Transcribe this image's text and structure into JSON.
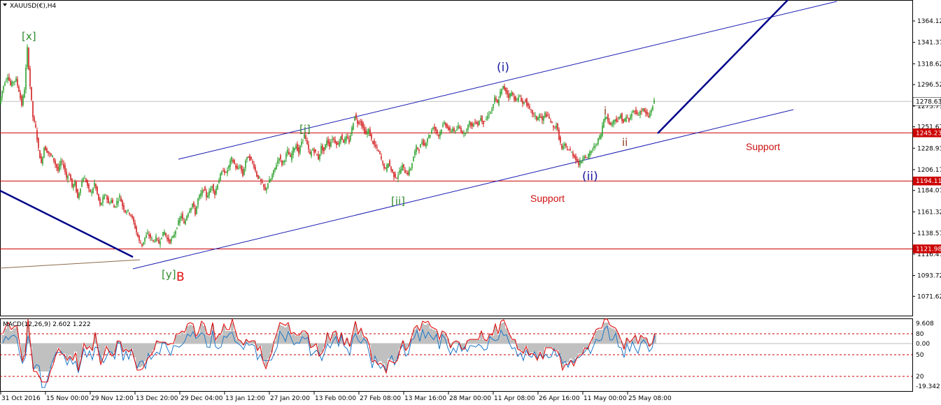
{
  "chart_data": {
    "type": "candlestick",
    "title": "XAUUSD(€),H4",
    "symbol": "XAUUSD(€)",
    "timeframe": "H4",
    "colors": {
      "bull": "#2ea12e",
      "bear": "#d21e1e",
      "channel": "#1a1ab4",
      "channel_thick": "#00008b",
      "support_line": "#cc0000",
      "price_line": "#c0c0c0",
      "macd_hist": "#c0c0c0",
      "macd_signal": "#e00000",
      "macd_main": "#1e78c8",
      "green_label": "#2e8b2e",
      "blue_label": "#1a1aa0",
      "brown_label": "#8b3a1a",
      "support_text": "#cc1111",
      "tag_bg": "#cc0000"
    },
    "price_axis": {
      "ylim": [
        1060,
        1376
      ],
      "ticks": [
        "1364.12",
        "1341.37",
        "1318.62",
        "1296.52",
        "1273.77",
        "1251.67",
        "1228.93",
        "1206.17",
        "1184.07",
        "1161.32",
        "1138.57",
        "1116.47",
        "1093.72",
        "1071.62"
      ]
    },
    "price_tags": [
      {
        "value": 1278.63,
        "label": "1278.63",
        "bg": "#ffffff",
        "fg": "#000000"
      },
      {
        "value": 1245.23,
        "label": "1245.23",
        "bg": "#cc0000",
        "fg": "#ffffff"
      },
      {
        "value": 1194.11,
        "label": "1194.11",
        "bg": "#cc0000",
        "fg": "#ffffff"
      },
      {
        "value": 1121.98,
        "label": "1121.98",
        "bg": "#cc0000",
        "fg": "#ffffff"
      }
    ],
    "horizontal_lines": [
      {
        "value": 1278.63,
        "style": "price"
      },
      {
        "value": 1245.23,
        "style": "support"
      },
      {
        "value": 1194.11,
        "style": "support"
      },
      {
        "value": 1121.98,
        "style": "support"
      }
    ],
    "time_axis": {
      "labels": [
        "31 Oct 2016",
        "15 Nov 00:00",
        "29 Nov 12:00",
        "13 Dec 20:00",
        "29 Dec 04:00",
        "13 Jan 12:00",
        "27 Jan 20:00",
        "13 Feb 00:00",
        "27 Feb 08:00",
        "13 Mar 16:00",
        "28 Mar 00:00",
        "11 Apr 08:00",
        "26 Apr 16:00",
        "11 May 00:00",
        "25 May 08:00"
      ]
    },
    "price_path": [
      [
        0,
        1276
      ],
      [
        4,
        1290
      ],
      [
        8,
        1300
      ],
      [
        12,
        1306
      ],
      [
        16,
        1296
      ],
      [
        20,
        1300
      ],
      [
        24,
        1302
      ],
      [
        28,
        1290
      ],
      [
        32,
        1275
      ],
      [
        36,
        1292
      ],
      [
        40,
        1335
      ],
      [
        44,
        1295
      ],
      [
        48,
        1262
      ],
      [
        52,
        1250
      ],
      [
        56,
        1228
      ],
      [
        60,
        1212
      ],
      [
        64,
        1230
      ],
      [
        68,
        1226
      ],
      [
        72,
        1222
      ],
      [
        76,
        1220
      ],
      [
        80,
        1212
      ],
      [
        84,
        1205
      ],
      [
        88,
        1215
      ],
      [
        92,
        1210
      ],
      [
        96,
        1198
      ],
      [
        100,
        1202
      ],
      [
        104,
        1188
      ],
      [
        108,
        1192
      ],
      [
        112,
        1176
      ],
      [
        116,
        1188
      ],
      [
        120,
        1198
      ],
      [
        124,
        1194
      ],
      [
        128,
        1184
      ],
      [
        132,
        1182
      ],
      [
        136,
        1192
      ],
      [
        140,
        1180
      ],
      [
        144,
        1168
      ],
      [
        148,
        1175
      ],
      [
        152,
        1180
      ],
      [
        156,
        1170
      ],
      [
        160,
        1174
      ],
      [
        164,
        1166
      ],
      [
        168,
        1172
      ],
      [
        172,
        1178
      ],
      [
        176,
        1168
      ],
      [
        180,
        1162
      ],
      [
        184,
        1162
      ],
      [
        188,
        1158
      ],
      [
        192,
        1150
      ],
      [
        196,
        1140
      ],
      [
        200,
        1130
      ],
      [
        204,
        1126
      ],
      [
        208,
        1134
      ],
      [
        212,
        1138
      ],
      [
        216,
        1134
      ],
      [
        220,
        1130
      ],
      [
        224,
        1134
      ],
      [
        228,
        1128
      ],
      [
        232,
        1136
      ],
      [
        236,
        1140
      ],
      [
        240,
        1132
      ],
      [
        244,
        1130
      ],
      [
        248,
        1134
      ],
      [
        252,
        1142
      ],
      [
        256,
        1150
      ],
      [
        260,
        1158
      ],
      [
        264,
        1148
      ],
      [
        268,
        1158
      ],
      [
        272,
        1164
      ],
      [
        276,
        1170
      ],
      [
        280,
        1160
      ],
      [
        284,
        1175
      ],
      [
        288,
        1180
      ],
      [
        292,
        1186
      ],
      [
        296,
        1178
      ],
      [
        300,
        1182
      ],
      [
        304,
        1190
      ],
      [
        308,
        1180
      ],
      [
        312,
        1192
      ],
      [
        316,
        1200
      ],
      [
        320,
        1206
      ],
      [
        324,
        1202
      ],
      [
        328,
        1210
      ],
      [
        332,
        1218
      ],
      [
        336,
        1212
      ],
      [
        340,
        1206
      ],
      [
        344,
        1210
      ],
      [
        348,
        1200
      ],
      [
        352,
        1216
      ],
      [
        356,
        1220
      ],
      [
        360,
        1216
      ],
      [
        364,
        1210
      ],
      [
        368,
        1200
      ],
      [
        372,
        1196
      ],
      [
        376,
        1190
      ],
      [
        380,
        1184
      ],
      [
        384,
        1192
      ],
      [
        388,
        1196
      ],
      [
        392,
        1204
      ],
      [
        396,
        1212
      ],
      [
        400,
        1220
      ],
      [
        404,
        1212
      ],
      [
        408,
        1218
      ],
      [
        412,
        1226
      ],
      [
        416,
        1218
      ],
      [
        420,
        1228
      ],
      [
        424,
        1232
      ],
      [
        428,
        1224
      ],
      [
        432,
        1236
      ],
      [
        436,
        1244
      ],
      [
        440,
        1232
      ],
      [
        444,
        1222
      ],
      [
        448,
        1228
      ],
      [
        452,
        1224
      ],
      [
        456,
        1218
      ],
      [
        460,
        1230
      ],
      [
        464,
        1226
      ],
      [
        468,
        1238
      ],
      [
        472,
        1232
      ],
      [
        476,
        1240
      ],
      [
        480,
        1236
      ],
      [
        484,
        1232
      ],
      [
        488,
        1242
      ],
      [
        492,
        1236
      ],
      [
        496,
        1240
      ],
      [
        500,
        1236
      ],
      [
        504,
        1250
      ],
      [
        508,
        1264
      ],
      [
        512,
        1256
      ],
      [
        516,
        1258
      ],
      [
        520,
        1250
      ],
      [
        524,
        1244
      ],
      [
        528,
        1248
      ],
      [
        532,
        1238
      ],
      [
        536,
        1232
      ],
      [
        540,
        1228
      ],
      [
        544,
        1222
      ],
      [
        548,
        1212
      ],
      [
        552,
        1206
      ],
      [
        556,
        1214
      ],
      [
        560,
        1206
      ],
      [
        564,
        1200
      ],
      [
        568,
        1198
      ],
      [
        572,
        1204
      ],
      [
        576,
        1210
      ],
      [
        580,
        1204
      ],
      [
        584,
        1202
      ],
      [
        588,
        1208
      ],
      [
        592,
        1220
      ],
      [
        596,
        1230
      ],
      [
        600,
        1228
      ],
      [
        604,
        1236
      ],
      [
        608,
        1232
      ],
      [
        612,
        1240
      ],
      [
        616,
        1244
      ],
      [
        620,
        1252
      ],
      [
        624,
        1248
      ],
      [
        628,
        1242
      ],
      [
        632,
        1250
      ],
      [
        636,
        1256
      ],
      [
        640,
        1252
      ],
      [
        644,
        1246
      ],
      [
        648,
        1250
      ],
      [
        652,
        1246
      ],
      [
        656,
        1252
      ],
      [
        660,
        1248
      ],
      [
        664,
        1244
      ],
      [
        668,
        1250
      ],
      [
        672,
        1256
      ],
      [
        676,
        1252
      ],
      [
        680,
        1258
      ],
      [
        684,
        1254
      ],
      [
        688,
        1262
      ],
      [
        692,
        1256
      ],
      [
        696,
        1260
      ],
      [
        700,
        1266
      ],
      [
        704,
        1270
      ],
      [
        708,
        1282
      ],
      [
        712,
        1276
      ],
      [
        716,
        1288
      ],
      [
        720,
        1294
      ],
      [
        724,
        1290
      ],
      [
        728,
        1284
      ],
      [
        732,
        1288
      ],
      [
        736,
        1282
      ],
      [
        740,
        1280
      ],
      [
        744,
        1284
      ],
      [
        748,
        1276
      ],
      [
        752,
        1280
      ],
      [
        756,
        1272
      ],
      [
        760,
        1268
      ],
      [
        764,
        1264
      ],
      [
        768,
        1260
      ],
      [
        772,
        1264
      ],
      [
        776,
        1258
      ],
      [
        780,
        1266
      ],
      [
        784,
        1262
      ],
      [
        788,
        1258
      ],
      [
        792,
        1250
      ],
      [
        796,
        1254
      ],
      [
        800,
        1240
      ],
      [
        804,
        1228
      ],
      [
        808,
        1232
      ],
      [
        812,
        1228
      ],
      [
        816,
        1226
      ],
      [
        820,
        1222
      ],
      [
        824,
        1218
      ],
      [
        828,
        1212
      ],
      [
        832,
        1216
      ],
      [
        836,
        1222
      ],
      [
        840,
        1218
      ],
      [
        844,
        1224
      ],
      [
        848,
        1228
      ],
      [
        852,
        1232
      ],
      [
        856,
        1238
      ],
      [
        860,
        1244
      ],
      [
        864,
        1260
      ],
      [
        868,
        1264
      ],
      [
        872,
        1254
      ],
      [
        876,
        1256
      ],
      [
        880,
        1260
      ],
      [
        884,
        1258
      ],
      [
        888,
        1264
      ],
      [
        892,
        1256
      ],
      [
        896,
        1262
      ],
      [
        900,
        1258
      ],
      [
        904,
        1266
      ],
      [
        908,
        1270
      ],
      [
        912,
        1264
      ],
      [
        916,
        1268
      ],
      [
        920,
        1270
      ],
      [
        924,
        1266
      ],
      [
        928,
        1262
      ],
      [
        932,
        1270
      ],
      [
        936,
        1279
      ]
    ],
    "channels": [
      {
        "from": [
          255,
          228
        ],
        "to": [
          1196,
          2
        ],
        "style": "thin"
      },
      {
        "from": [
          190,
          385
        ],
        "to": [
          1134,
          157
        ],
        "style": "thin"
      },
      {
        "from": [
          0,
          273
        ],
        "to": [
          190,
          368
        ],
        "style": "thick"
      },
      {
        "from": [
          940,
          191
        ],
        "to": [
          1126,
          0
        ],
        "style": "thick"
      },
      {
        "from": [
          0,
          384
        ],
        "to": [
          200,
          372
        ],
        "style": "brown"
      }
    ],
    "wave_labels": [
      {
        "text": "[x]",
        "color": "green",
        "x": 31,
        "y": 57,
        "size": 15
      },
      {
        "text": "[y]",
        "color": "green",
        "x": 231,
        "y": 398,
        "size": 15
      },
      {
        "text": "B",
        "color": "red",
        "x": 252,
        "y": 402,
        "size": 17
      },
      {
        "text": "[i]",
        "color": "green",
        "x": 428,
        "y": 190,
        "size": 15
      },
      {
        "text": "[ii]",
        "color": "green",
        "x": 559,
        "y": 293,
        "size": 15
      },
      {
        "text": "(i)",
        "color": "blue",
        "x": 710,
        "y": 102,
        "size": 17
      },
      {
        "text": "(ii)",
        "color": "blue",
        "x": 832,
        "y": 258,
        "size": 17
      },
      {
        "text": "i",
        "color": "brown",
        "x": 863,
        "y": 164,
        "size": 15
      },
      {
        "text": "ii",
        "color": "brown",
        "x": 889,
        "y": 209,
        "size": 15
      }
    ],
    "annotations": [
      {
        "text": "Support",
        "x": 1066,
        "y": 215
      },
      {
        "text": "Support",
        "x": 758,
        "y": 289
      }
    ],
    "macd": {
      "label": "MACD(12,26,9) 2.602 1.222",
      "ticks": [
        "9.608",
        "80",
        "0.00",
        "50",
        "20",
        "-19.342"
      ],
      "levels": [
        {
          "label": "80",
          "kind": "dashed"
        },
        {
          "label": "0.00",
          "kind": "solid"
        },
        {
          "label": "50",
          "kind": "dashed"
        },
        {
          "label": "20",
          "kind": "dashed"
        }
      ]
    }
  }
}
